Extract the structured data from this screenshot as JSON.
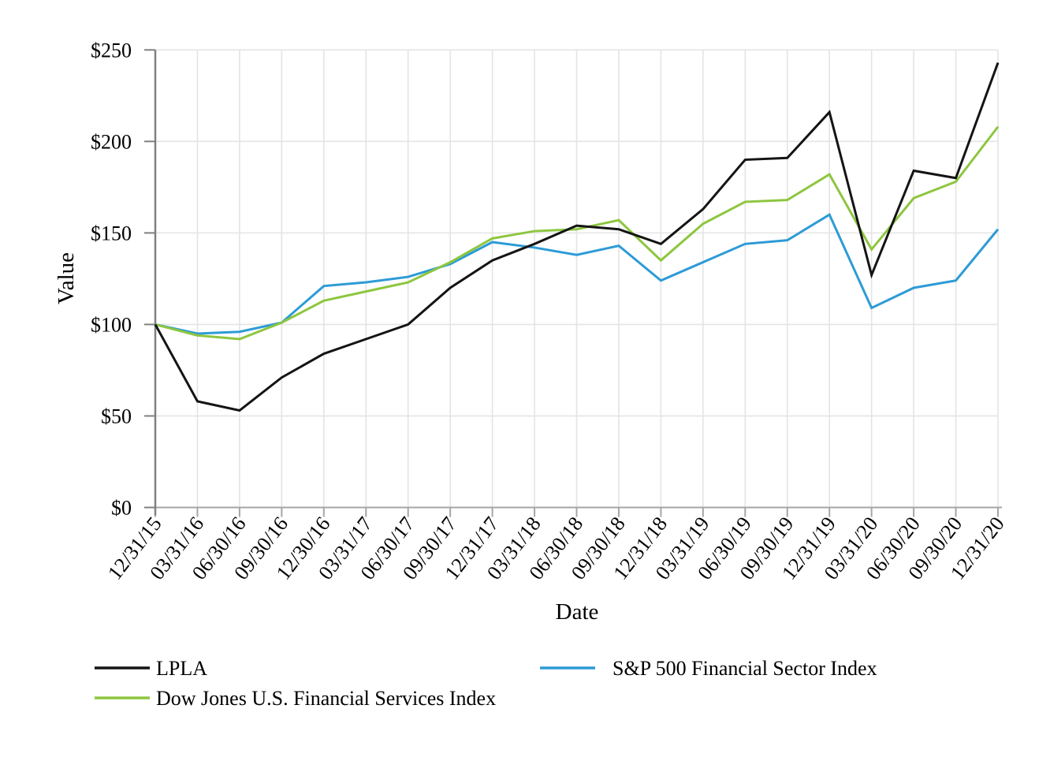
{
  "chart_data": {
    "type": "line",
    "title": "",
    "xlabel": "Date",
    "ylabel": "Value",
    "ylim": [
      0,
      250
    ],
    "grid": true,
    "legend_position": "bottom",
    "y_ticks": [
      {
        "value": 0,
        "label": "$0"
      },
      {
        "value": 50,
        "label": "$50"
      },
      {
        "value": 100,
        "label": "$100"
      },
      {
        "value": 150,
        "label": "$150"
      },
      {
        "value": 200,
        "label": "$200"
      },
      {
        "value": 250,
        "label": "$250"
      }
    ],
    "categories": [
      "12/31/15",
      "03/31/16",
      "06/30/16",
      "09/30/16",
      "12/30/16",
      "03/31/17",
      "06/30/17",
      "09/30/17",
      "12/31/17",
      "03/31/18",
      "06/30/18",
      "09/30/18",
      "12/31/18",
      "03/31/19",
      "06/30/19",
      "09/30/19",
      "12/31/19",
      "03/31/20",
      "06/30/20",
      "09/30/20",
      "12/31/20"
    ],
    "series": [
      {
        "name": "LPLA",
        "color": "#141414",
        "values": [
          100,
          58,
          53,
          71,
          84,
          92,
          100,
          120,
          135,
          144,
          154,
          152,
          144,
          163,
          190,
          191,
          216,
          127,
          184,
          180,
          243
        ]
      },
      {
        "name": "S&P 500 Financial Sector Index",
        "color": "#2d9bd6",
        "values": [
          100,
          95,
          96,
          101,
          121,
          123,
          126,
          133,
          145,
          142,
          138,
          143,
          124,
          134,
          144,
          146,
          160,
          109,
          120,
          124,
          152
        ]
      },
      {
        "name": "Dow Jones U.S. Financial Services Index",
        "color": "#8dc63f",
        "values": [
          100,
          94,
          92,
          101,
          113,
          118,
          123,
          134,
          147,
          151,
          152,
          157,
          135,
          155,
          167,
          168,
          182,
          141,
          169,
          178,
          208
        ]
      }
    ],
    "colors": {
      "grid": "#e4e4e4",
      "x_axis": "#a6a6a6",
      "y_axis": "#808080",
      "text": "#000000"
    }
  }
}
